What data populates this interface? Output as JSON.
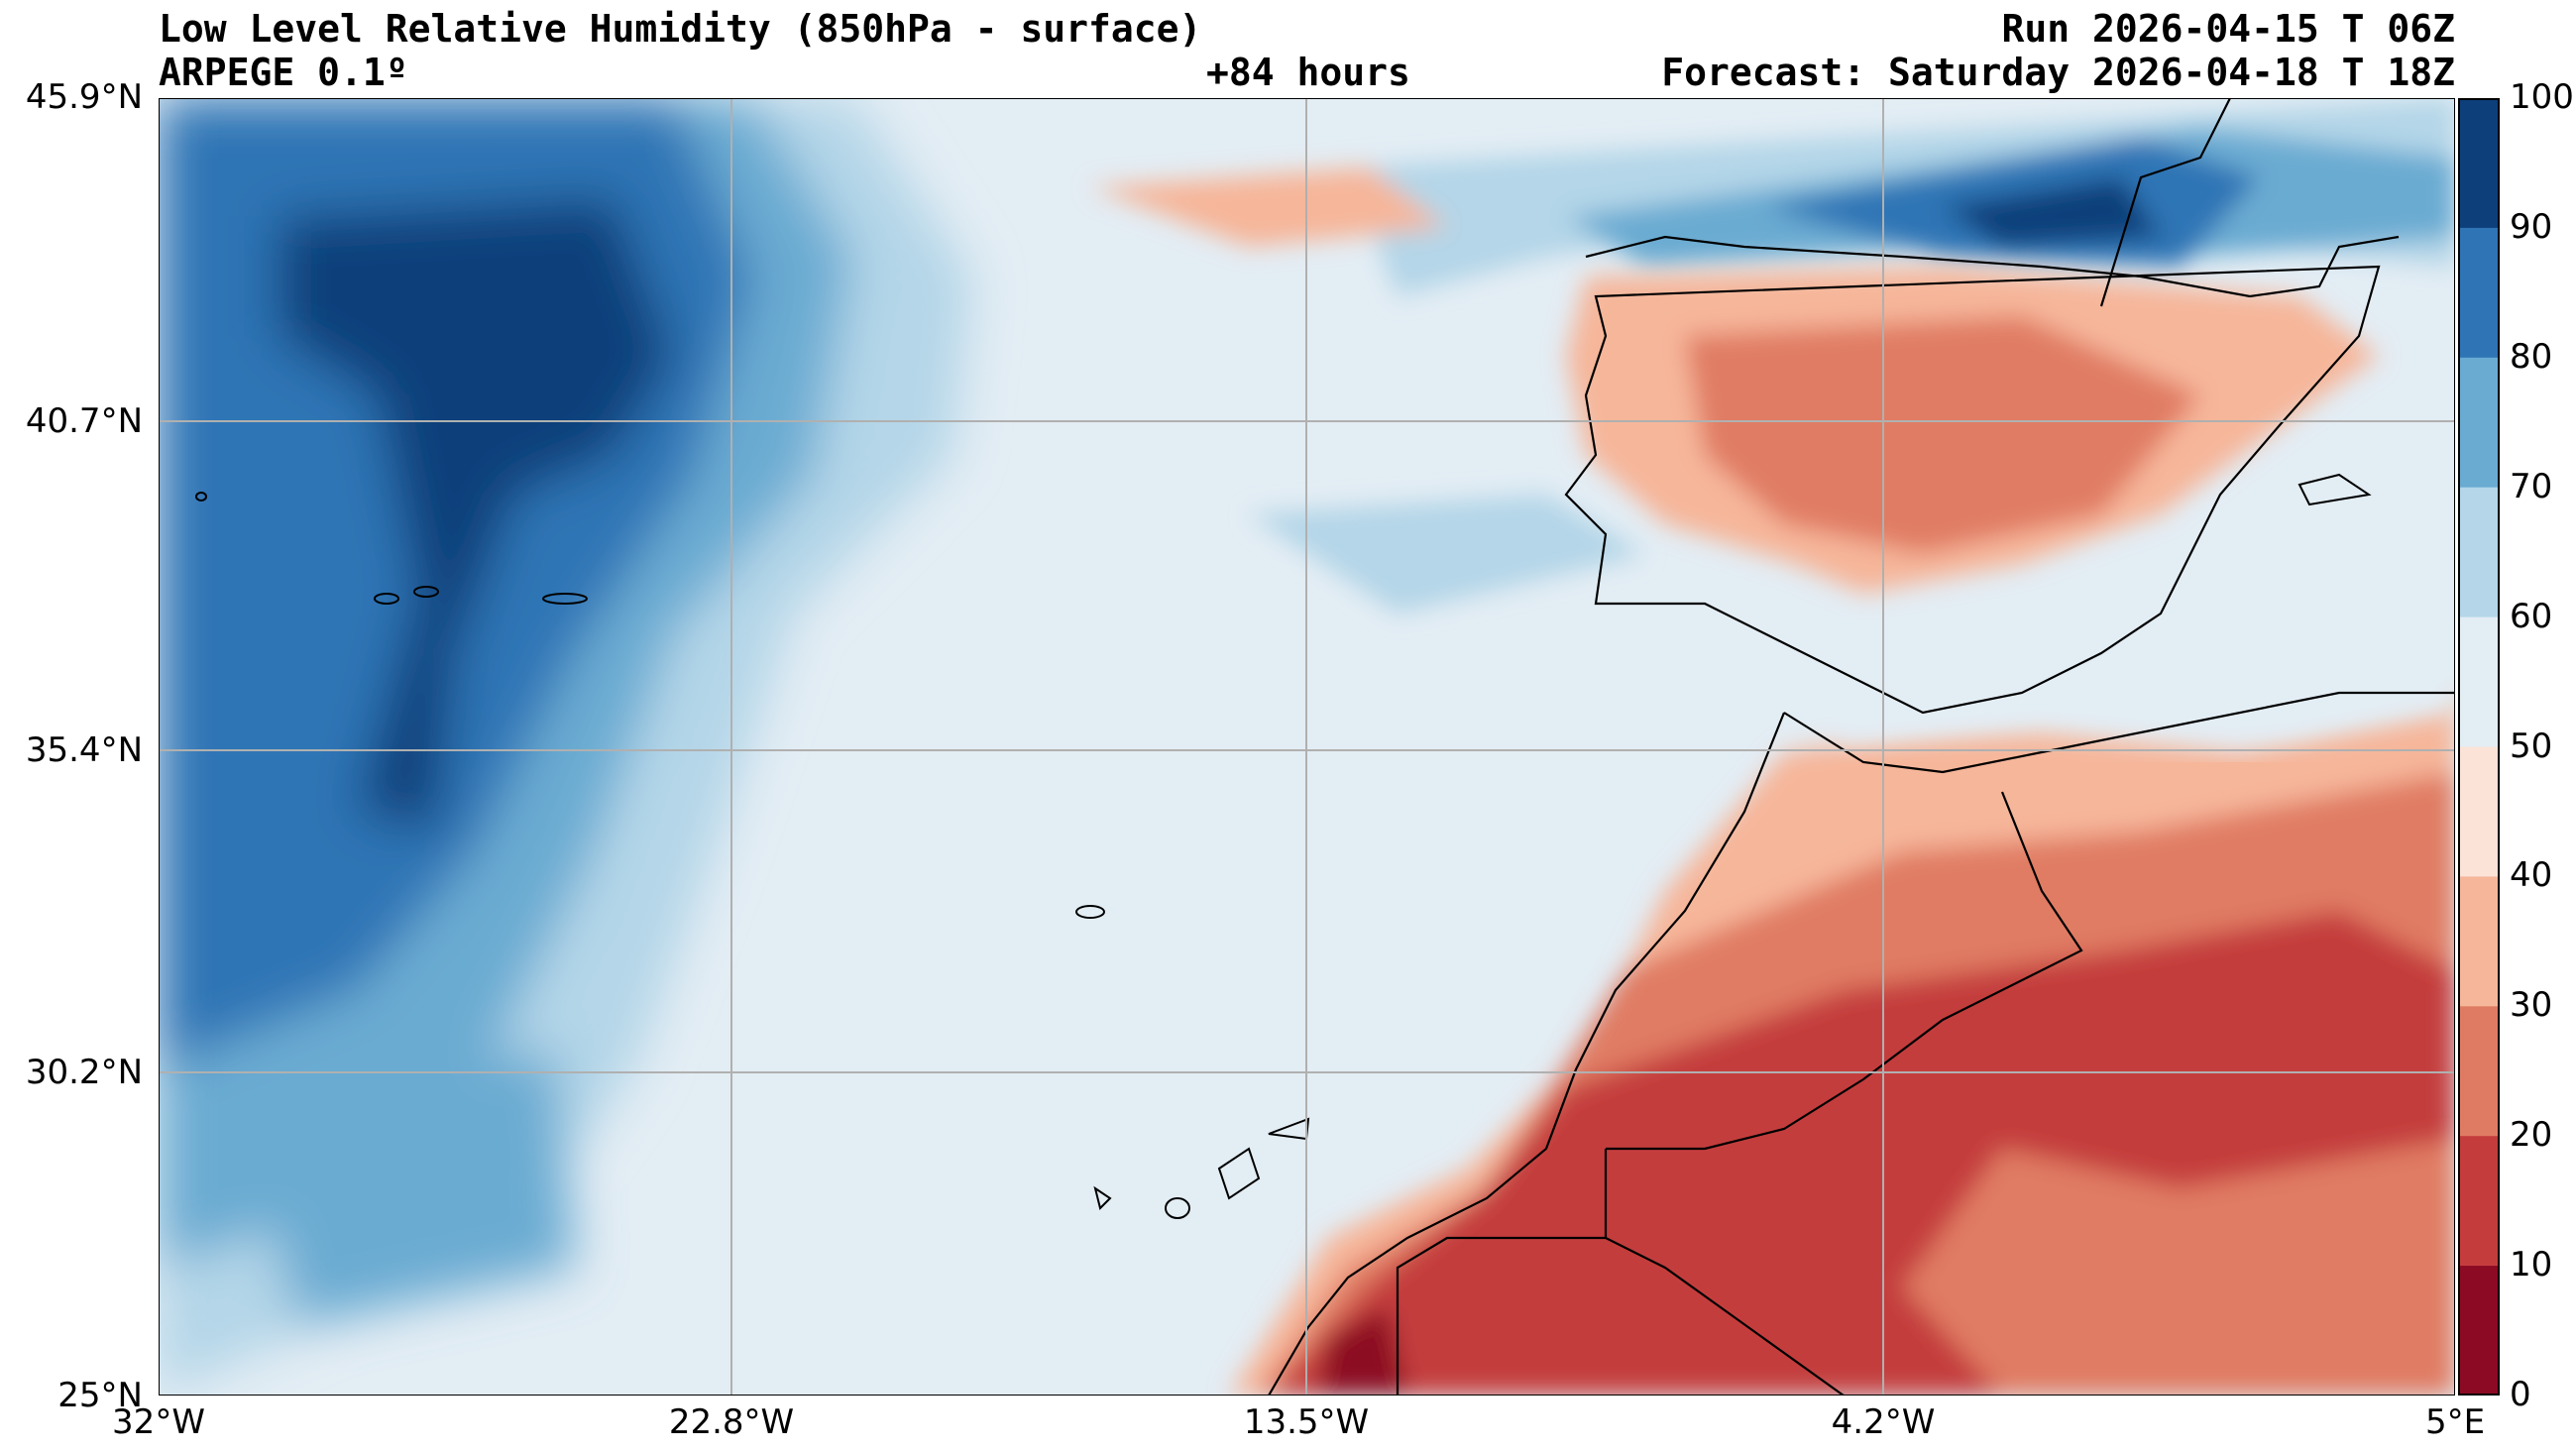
{
  "header": {
    "title": "Low Level Relative Humidity (850hPa - surface)",
    "model": "ARPEGE 0.1º",
    "lead": "+84 hours",
    "run": "Run 2026-04-15 T 06Z",
    "forecast": "Forecast: Saturday 2026-04-18 T 18Z"
  },
  "map": {
    "lat_ticks": [
      "45.9°N",
      "40.7°N",
      "35.4°N",
      "30.2°N",
      "25°N"
    ],
    "lon_ticks": [
      "32°W",
      "22.8°W",
      "13.5°W",
      "4.2°W",
      "5°E"
    ]
  },
  "colorbar": {
    "levels": [
      "100",
      "90",
      "80",
      "70",
      "60",
      "50",
      "40",
      "30",
      "20",
      "10",
      "0"
    ],
    "colors": [
      "#0d3f7a",
      "#2f74b5",
      "#6aabd2",
      "#b4d6e8",
      "#e3edf4",
      "#fbe3d8",
      "#f6b69a",
      "#e07b63",
      "#c43c3c",
      "#8c0a24"
    ]
  }
}
